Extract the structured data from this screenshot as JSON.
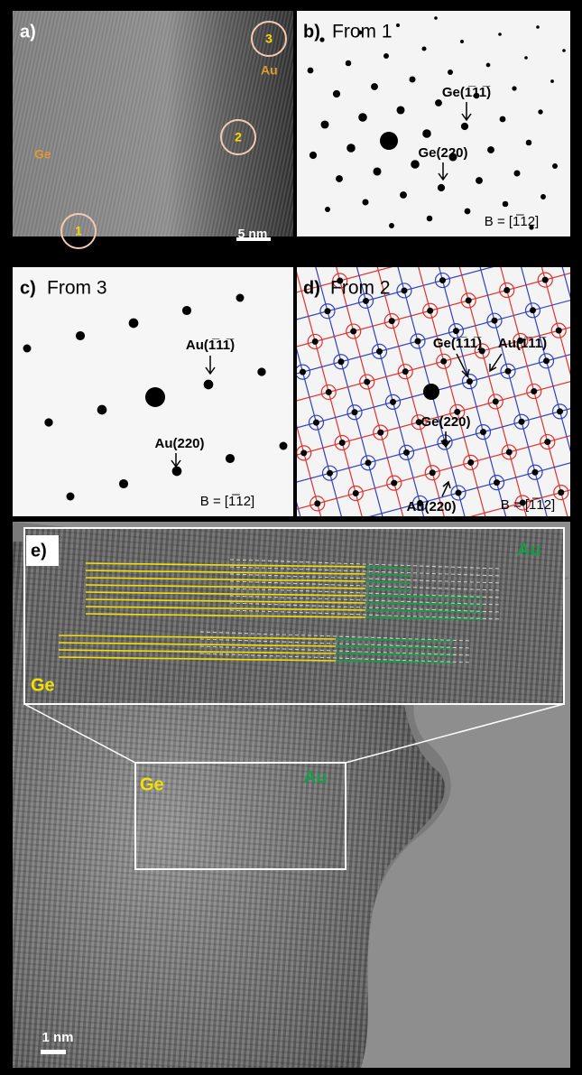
{
  "panels": {
    "a": {
      "label": "a)",
      "regions": [
        "1",
        "2",
        "3"
      ],
      "materials": [
        "Ge",
        "Au"
      ],
      "scale_bar": "5 nm"
    },
    "b": {
      "label": "b)",
      "title": "From 1",
      "annotations": [
        "Ge(1̅11̅)",
        "Ge(220)"
      ],
      "zone_axis": "B = [1̅12]"
    },
    "c": {
      "label": "c)",
      "title": "From 3",
      "annotations": [
        "Au(1̅11̅)",
        "Au(220)"
      ],
      "zone_axis": "B = [1̅12]"
    },
    "d": {
      "label": "d)",
      "title": "From 2",
      "annotations": [
        "Ge(1̅11̅)",
        "Au(1̅11̅)",
        "Ge(220)",
        "Au(220)"
      ],
      "zone_axis": "B = [1̅12]"
    },
    "e": {
      "label": "e)",
      "inset_materials": [
        "Au",
        "Ge"
      ],
      "materials": [
        "Ge",
        "Au"
      ],
      "scale_bar": "1 nm"
    }
  }
}
